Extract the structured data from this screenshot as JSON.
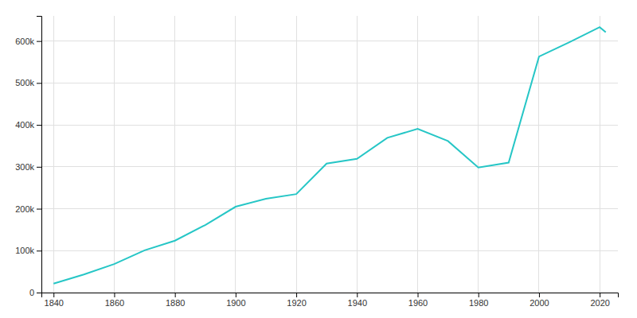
{
  "chart_data": {
    "type": "line",
    "x": [
      1840,
      1850,
      1860,
      1870,
      1880,
      1890,
      1900,
      1910,
      1920,
      1930,
      1940,
      1950,
      1960,
      1970,
      1980,
      1990,
      2000,
      2010,
      2020,
      2022
    ],
    "values": [
      21210,
      43194,
      68033,
      100753,
      123758,
      161129,
      204731,
      223928,
      234891,
      307745,
      319077,
      369129,
      390639,
      361472,
      298451,
      310000,
      563011,
      597337,
      633045,
      621000
    ],
    "color": "#26c6c6",
    "xlim": [
      1836,
      2026
    ],
    "xticks": [
      1840,
      1860,
      1880,
      1900,
      1920,
      1940,
      1960,
      1980,
      2000,
      2020
    ],
    "ylim": [
      0,
      660000
    ],
    "yticks": [
      0,
      {
        "value": 100000,
        "label": "100k"
      },
      {
        "value": 200000,
        "label": "200k"
      },
      {
        "value": 300000,
        "label": "300k"
      },
      {
        "value": 400000,
        "label": "400k"
      },
      {
        "value": 500000,
        "label": "500k"
      },
      {
        "value": 600000,
        "label": "600k"
      }
    ],
    "grid": true
  }
}
